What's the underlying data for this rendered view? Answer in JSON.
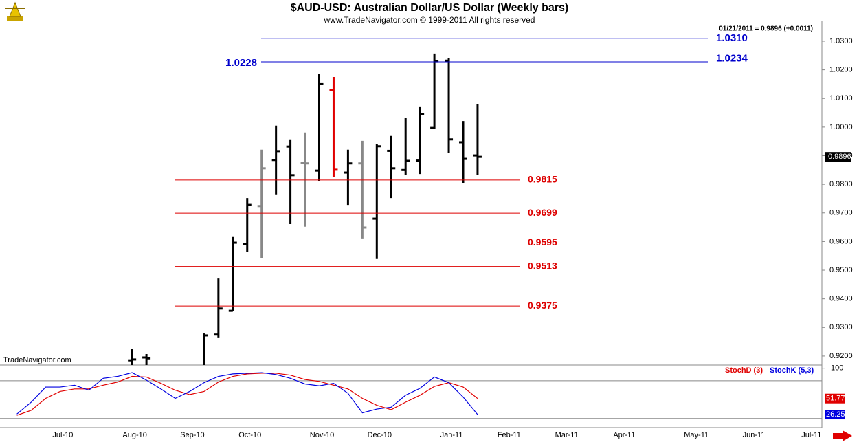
{
  "chart_data": [
    {
      "type": "ohlc",
      "title": "$AUD-USD:  Australian Dollar/US Dollar  (Weekly bars)",
      "subtitle": "www.TradeNavigator.com © 1999-2011 All rights reserved",
      "header_note": "01/21/2011 = 0.9896 (+0.0011)",
      "watermark": "TradeNavigator.com",
      "categories": [
        null,
        null,
        null,
        null,
        "Jul-10",
        null,
        null,
        null,
        null,
        "Aug-10",
        null,
        null,
        null,
        "Sep-10",
        null,
        null,
        null,
        "Oct-10",
        null,
        null,
        null,
        null,
        "Nov-10",
        null,
        null,
        null,
        "Dec-10",
        null,
        null,
        null,
        null,
        "Jan-11",
        null,
        null,
        null,
        "Feb-11",
        null,
        null,
        null,
        "Mar-11",
        null,
        null,
        null,
        "Apr-11",
        null,
        null,
        null,
        null,
        "May-11",
        null,
        null,
        null,
        "Jun-11",
        null,
        null,
        null,
        "Jul-11"
      ],
      "open": [
        null,
        null,
        null,
        null,
        null,
        null,
        null,
        null,
        null,
        0.9185,
        0.9195,
        null,
        null,
        null,
        0.916,
        0.9275,
        0.9358,
        0.9591,
        0.9724,
        0.9885,
        0.9932,
        0.9876,
        0.9848,
        1.013,
        0.9841,
        0.9873,
        0.968,
        0.9917,
        0.985,
        0.9883,
        0.9997,
        1.0232,
        0.9947,
        0.9901,
        null,
        null,
        null,
        null,
        null,
        null,
        null,
        null,
        null,
        null,
        null,
        null,
        null,
        null,
        null,
        null,
        null,
        null,
        null,
        null,
        null,
        null,
        null
      ],
      "high": [
        null,
        null,
        null,
        null,
        null,
        null,
        null,
        null,
        null,
        0.9224,
        0.9207,
        null,
        null,
        null,
        0.9279,
        0.9471,
        0.9616,
        0.9752,
        0.9921,
        1.0005,
        0.9957,
        0.9981,
        1.0185,
        1.0175,
        0.9921,
        0.9952,
        0.994,
        0.9969,
        1.0031,
        1.0072,
        1.0257,
        1.024,
        1.0021,
        1.0081,
        null,
        null,
        null,
        null,
        null,
        null,
        null,
        null,
        null,
        null,
        null,
        null,
        null,
        null,
        null,
        null,
        null,
        null,
        null,
        null,
        null,
        null,
        null
      ],
      "low": [
        null,
        null,
        null,
        null,
        null,
        null,
        null,
        null,
        null,
        0.916,
        0.9165,
        null,
        null,
        null,
        0.915,
        0.9265,
        0.9358,
        0.9563,
        0.9541,
        0.9765,
        0.9661,
        0.9652,
        0.9812,
        0.9825,
        0.9728,
        0.9611,
        0.9539,
        0.9752,
        0.9832,
        0.9836,
        0.9993,
        0.9909,
        0.9805,
        0.9832,
        null,
        null,
        null,
        null,
        null,
        null,
        null,
        null,
        null,
        null,
        null,
        null,
        null,
        null,
        null,
        null,
        null,
        null,
        null,
        null,
        null,
        null,
        null
      ],
      "close": [
        null,
        null,
        null,
        null,
        null,
        null,
        null,
        null,
        null,
        0.9188,
        0.9192,
        null,
        null,
        null,
        0.9272,
        0.9366,
        0.9596,
        0.9728,
        0.9856,
        0.9916,
        0.9832,
        0.9873,
        1.015,
        0.9851,
        0.9873,
        0.9649,
        0.9933,
        0.9856,
        0.9882,
        1.0045,
        1.023,
        0.9957,
        0.9889,
        0.9896,
        null,
        null,
        null,
        null,
        null,
        null,
        null,
        null,
        null,
        null,
        null,
        null,
        null,
        null,
        null,
        null,
        null,
        null,
        null,
        null,
        null,
        null,
        null
      ],
      "bar_colors": [
        null,
        null,
        null,
        null,
        null,
        null,
        null,
        null,
        null,
        "#000000",
        "#000000",
        null,
        null,
        null,
        "#000000",
        "#000000",
        "#000000",
        "#000000",
        "#888888",
        "#000000",
        "#000000",
        "#888888",
        "#000000",
        "#e00000",
        "#000000",
        "#888888",
        "#000000",
        "#000000",
        "#000000",
        "#000000",
        "#000000",
        "#000000",
        "#000000",
        "#000000",
        null,
        null,
        null,
        null,
        null,
        null,
        null,
        null,
        null,
        null,
        null,
        null,
        null,
        null,
        null,
        null,
        null,
        null,
        null,
        null,
        null,
        null,
        null
      ],
      "last_value": 0.9896,
      "ylim": [
        0.9171,
        1.0372
      ],
      "yticks": [
        {
          "value": 0.92,
          "label": "0.9200"
        },
        {
          "value": 0.93,
          "label": "0.9300"
        },
        {
          "value": 0.94,
          "label": "0.9400"
        },
        {
          "value": 0.95,
          "label": "0.9500"
        },
        {
          "value": 0.96,
          "label": "0.9600"
        },
        {
          "value": 0.97,
          "label": "0.9700"
        },
        {
          "value": 0.98,
          "label": "0.9800"
        },
        {
          "value": 0.99,
          "label": "0.9900"
        },
        {
          "value": 1.0,
          "label": "1.0000"
        },
        {
          "value": 1.01,
          "label": "1.0100"
        },
        {
          "value": 1.02,
          "label": "1.0200"
        },
        {
          "value": 1.03,
          "label": "1.0300"
        }
      ],
      "resistance_levels": {
        "color": "#0000cc",
        "lines": [
          {
            "value": 1.031,
            "label": "1.0310"
          },
          1.0234,
          1.0228
        ]
      },
      "support_levels": {
        "color": "#dd0000",
        "lines": [
          0.9815,
          0.9699,
          0.9595,
          0.9513,
          0.9375
        ]
      }
    },
    {
      "type": "line",
      "series": [
        {
          "name": "StochD (3)",
          "color": "#e00000",
          "values": [
            null,
            25,
            33,
            52,
            63,
            67,
            67,
            73,
            78,
            87,
            86,
            76,
            65,
            58,
            63,
            78,
            87,
            91,
            92,
            92,
            89,
            82,
            79,
            73,
            67,
            52,
            41,
            34,
            46,
            57,
            71,
            77,
            70,
            51.77,
            null,
            null,
            null,
            null,
            null,
            null,
            null,
            null,
            null,
            null,
            null,
            null,
            null,
            null,
            null,
            null,
            null,
            null,
            null,
            null,
            null,
            null,
            null
          ]
        },
        {
          "name": "StochK (5,3)",
          "color": "#0000e0",
          "values": [
            null,
            27,
            46,
            70,
            70,
            73,
            65,
            84,
            87,
            93,
            81,
            67,
            52,
            63,
            77,
            87,
            91,
            92,
            93,
            90,
            84,
            75,
            72,
            76,
            60,
            29,
            35,
            38,
            57,
            68,
            86,
            77,
            54,
            26.25,
            null,
            null,
            null,
            null,
            null,
            null,
            null,
            null,
            null,
            null,
            null,
            null,
            null,
            null,
            null,
            null,
            null,
            null,
            null,
            null,
            null,
            null,
            null
          ]
        }
      ],
      "ylim": [
        0,
        104
      ],
      "yticks": [
        100
      ],
      "levels": [
        20,
        80
      ]
    }
  ]
}
